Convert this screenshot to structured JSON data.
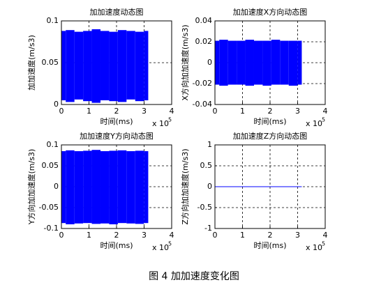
{
  "chart_data": [
    {
      "type": "band",
      "title": "加加速度动态图",
      "xlabel": "时间(ms)",
      "ylabel": "加加速度(m/s3)",
      "x_multiplier": "x 10",
      "x_exponent": "5",
      "xlim": [
        0,
        4
      ],
      "xticks": [
        0,
        1,
        2,
        3,
        4
      ],
      "ylim": [
        0,
        0.1
      ],
      "yticks": [
        0,
        0.05,
        0.1
      ],
      "grid": true,
      "x": [
        0,
        0.315,
        0.63,
        0.945,
        1.26,
        1.575,
        1.89,
        2.205,
        2.52,
        2.835,
        3.15
      ],
      "series": [
        {
          "color": "#0000ff",
          "values": [
            0.088,
            0.089,
            0.087,
            0.088,
            0.09,
            0.088,
            0.087,
            0.089,
            0.088,
            0.087,
            0.088
          ]
        },
        {
          "color": "#0000ff",
          "values": [
            0.005,
            0.003,
            0.006,
            0.004,
            0.002,
            0.005,
            0.004,
            0.003,
            0.006,
            0.004,
            0.005
          ]
        }
      ]
    },
    {
      "type": "band",
      "title": "加加速度X方向动态图",
      "xlabel": "时间(ms)",
      "ylabel": "X方向加加速度(m/s3)",
      "x_multiplier": "x 10",
      "x_exponent": "5",
      "xlim": [
        0,
        4
      ],
      "xticks": [
        0,
        1,
        2,
        3,
        4
      ],
      "ylim": [
        -0.04,
        0.04
      ],
      "yticks": [
        -0.04,
        -0.02,
        0,
        0.02,
        0.04
      ],
      "grid": true,
      "x": [
        0,
        0.315,
        0.63,
        0.945,
        1.26,
        1.575,
        1.89,
        2.205,
        2.52,
        2.835,
        3.15
      ],
      "series": [
        {
          "color": "#0000ff",
          "values": [
            0.021,
            0.022,
            0.021,
            0.021,
            0.022,
            0.021,
            0.021,
            0.022,
            0.021,
            0.021,
            0.021
          ]
        },
        {
          "color": "#0000ff",
          "values": [
            -0.021,
            -0.022,
            -0.021,
            -0.021,
            -0.022,
            -0.021,
            -0.022,
            -0.021,
            -0.021,
            -0.022,
            -0.021
          ]
        }
      ]
    },
    {
      "type": "band",
      "title": "加加速度Y方向动态图",
      "xlabel": "时间(ms)",
      "ylabel": "Y方向加加速度(m/s3)",
      "x_multiplier": "x 10",
      "x_exponent": "5",
      "xlim": [
        0,
        4
      ],
      "xticks": [
        0,
        1,
        2,
        3,
        4
      ],
      "ylim": [
        -0.1,
        0.1
      ],
      "yticks": [
        -0.1,
        -0.05,
        0,
        0.05,
        0.1
      ],
      "grid": true,
      "x": [
        0,
        0.315,
        0.63,
        0.945,
        1.26,
        1.575,
        1.89,
        2.205,
        2.52,
        2.835,
        3.15
      ],
      "series": [
        {
          "color": "#0000ff",
          "values": [
            0.085,
            0.087,
            0.085,
            0.086,
            0.088,
            0.085,
            0.086,
            0.087,
            0.085,
            0.086,
            0.085
          ]
        },
        {
          "color": "#0000ff",
          "values": [
            -0.087,
            -0.09,
            -0.088,
            -0.087,
            -0.089,
            -0.088,
            -0.09,
            -0.087,
            -0.088,
            -0.089,
            -0.087
          ]
        }
      ]
    },
    {
      "type": "line",
      "title": "加加速度Z方向动态图",
      "xlabel": "时间(ms)",
      "ylabel": "Z方向加加速度(m/s3)",
      "x_multiplier": "x 10",
      "x_exponent": "5",
      "xlim": [
        0,
        4
      ],
      "xticks": [
        0,
        1,
        2,
        3,
        4
      ],
      "ylim": [
        -1,
        1
      ],
      "yticks": [
        -1,
        -0.5,
        0,
        0.5,
        1
      ],
      "grid": true,
      "x": [
        0,
        3.15
      ],
      "series": [
        {
          "color": "#0000ff",
          "values": [
            0,
            0
          ]
        }
      ]
    }
  ],
  "caption": "图 4 加加速度变化图"
}
